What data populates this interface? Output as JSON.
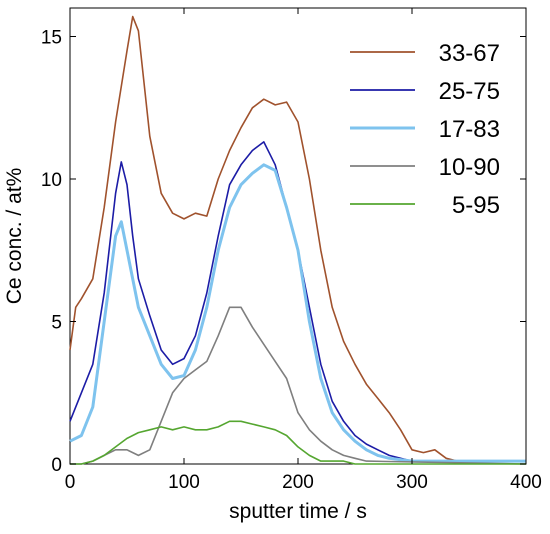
{
  "chart_data": {
    "type": "line",
    "xlabel": "sputter time / s",
    "ylabel": "Ce conc. / at%",
    "xlim": [
      0,
      400
    ],
    "ylim": [
      0,
      16
    ],
    "xticks": [
      0,
      100,
      200,
      300,
      400
    ],
    "xtick_labels": [
      "0",
      "100",
      "200",
      "300",
      "400"
    ],
    "yticks": [
      0,
      5,
      10,
      15
    ],
    "ytick_labels": [
      "0",
      "5",
      "10",
      "15"
    ],
    "grid": false,
    "legend": {
      "placement": "top-right",
      "entries": [
        "33-67",
        "25-75",
        "17-83",
        "10-90",
        "5-95"
      ]
    },
    "series": [
      {
        "name": "33-67",
        "color": "#a0522d",
        "x": [
          0,
          5,
          10,
          20,
          30,
          40,
          50,
          55,
          60,
          70,
          80,
          90,
          100,
          110,
          120,
          130,
          140,
          150,
          160,
          170,
          180,
          190,
          200,
          210,
          220,
          230,
          240,
          250,
          260,
          270,
          280,
          290,
          300,
          310,
          320,
          330,
          340,
          400
        ],
        "y": [
          4.0,
          5.5,
          5.8,
          6.5,
          9.0,
          12.0,
          14.5,
          15.7,
          15.2,
          11.5,
          9.5,
          8.8,
          8.6,
          8.8,
          8.7,
          10.0,
          11.0,
          11.8,
          12.5,
          12.8,
          12.6,
          12.7,
          12.0,
          10.0,
          7.5,
          5.5,
          4.3,
          3.5,
          2.8,
          2.3,
          1.8,
          1.2,
          0.5,
          0.4,
          0.5,
          0.2,
          0.1,
          0.1
        ]
      },
      {
        "name": "25-75",
        "color": "#1c1ca6",
        "x": [
          0,
          10,
          20,
          30,
          40,
          45,
          50,
          55,
          60,
          70,
          80,
          90,
          100,
          110,
          120,
          130,
          140,
          150,
          160,
          170,
          175,
          180,
          190,
          200,
          210,
          220,
          230,
          240,
          250,
          260,
          270,
          280,
          290,
          300,
          320,
          400
        ],
        "y": [
          1.5,
          2.5,
          3.5,
          6.0,
          9.5,
          10.6,
          9.8,
          8.0,
          6.5,
          5.2,
          4.0,
          3.5,
          3.7,
          4.5,
          6.0,
          8.0,
          9.8,
          10.5,
          11.0,
          11.3,
          10.9,
          10.5,
          9.0,
          7.5,
          5.5,
          3.5,
          2.2,
          1.5,
          1.0,
          0.7,
          0.5,
          0.3,
          0.2,
          0.1,
          0.1,
          0.1
        ]
      },
      {
        "name": "17-83",
        "color": "#7ec3ee",
        "x": [
          0,
          10,
          20,
          30,
          40,
          45,
          50,
          60,
          70,
          80,
          90,
          100,
          110,
          120,
          130,
          140,
          150,
          160,
          170,
          180,
          190,
          200,
          210,
          220,
          230,
          240,
          250,
          260,
          270,
          280,
          300,
          400
        ],
        "y": [
          0.8,
          1.0,
          2.0,
          5.0,
          8.0,
          8.5,
          7.5,
          5.5,
          4.5,
          3.5,
          3.0,
          3.1,
          4.0,
          5.5,
          7.5,
          9.0,
          9.8,
          10.2,
          10.5,
          10.3,
          9.0,
          7.5,
          5.0,
          3.0,
          1.8,
          1.2,
          0.8,
          0.5,
          0.3,
          0.2,
          0.1,
          0.1
        ]
      },
      {
        "name": "10-90",
        "color": "#7f7f7f",
        "x": [
          0,
          10,
          20,
          30,
          40,
          50,
          60,
          70,
          80,
          90,
          100,
          110,
          120,
          130,
          140,
          150,
          160,
          170,
          180,
          190,
          200,
          210,
          220,
          230,
          240,
          250,
          260,
          400
        ],
        "y": [
          0.0,
          0.0,
          0.1,
          0.3,
          0.5,
          0.5,
          0.3,
          0.5,
          1.5,
          2.5,
          3.0,
          3.3,
          3.6,
          4.5,
          5.5,
          5.5,
          4.8,
          4.2,
          3.6,
          3.0,
          1.8,
          1.2,
          0.8,
          0.5,
          0.3,
          0.2,
          0.1,
          0.0
        ]
      },
      {
        "name": "5-95",
        "color": "#55a630",
        "x": [
          0,
          10,
          20,
          30,
          40,
          50,
          60,
          70,
          80,
          90,
          100,
          110,
          120,
          130,
          140,
          150,
          160,
          170,
          180,
          190,
          200,
          210,
          220,
          230,
          240,
          250,
          260,
          400
        ],
        "y": [
          0.0,
          0.0,
          0.1,
          0.3,
          0.6,
          0.9,
          1.1,
          1.2,
          1.3,
          1.2,
          1.3,
          1.2,
          1.2,
          1.3,
          1.5,
          1.5,
          1.4,
          1.3,
          1.2,
          1.0,
          0.6,
          0.3,
          0.1,
          0.1,
          0.1,
          0.0,
          0.0,
          0.0
        ]
      }
    ]
  }
}
